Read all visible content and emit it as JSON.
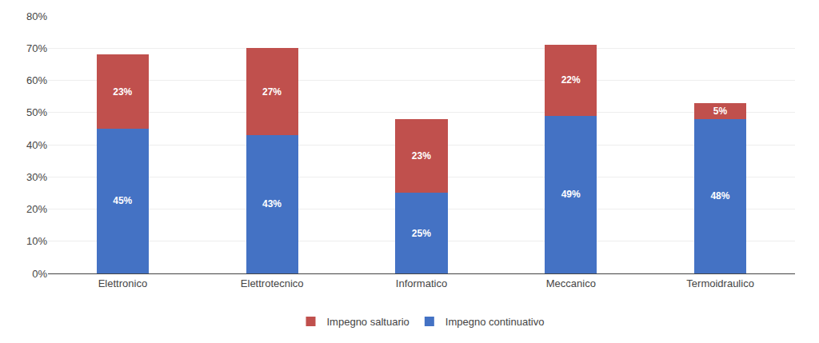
{
  "chart_data": {
    "type": "bar",
    "stacked": true,
    "categories": [
      "Elettronico",
      "Elettrotecnico",
      "Informatico",
      "Meccanico",
      "Termoidraulico"
    ],
    "series": [
      {
        "name": "Impegno continuativo",
        "color": "#4472C4",
        "values": [
          45,
          43,
          25,
          49,
          48
        ],
        "value_labels": [
          "45%",
          "43%",
          "25%",
          "49%",
          "48%"
        ]
      },
      {
        "name": "Impegno saltuario",
        "color": "#C0504D",
        "values": [
          23,
          27,
          23,
          22,
          5
        ],
        "value_labels": [
          "23%",
          "27%",
          "23%",
          "22%",
          "5%"
        ]
      }
    ],
    "ylim": [
      0,
      80
    ],
    "yticks": [
      {
        "value": 0,
        "label": "0%"
      },
      {
        "value": 10,
        "label": "10%"
      },
      {
        "value": 20,
        "label": "20%"
      },
      {
        "value": 30,
        "label": "30%"
      },
      {
        "value": 40,
        "label": "40%"
      },
      {
        "value": 50,
        "label": "50%"
      },
      {
        "value": 60,
        "label": "60%"
      },
      {
        "value": 70,
        "label": "70%"
      },
      {
        "value": 80,
        "label": "80%"
      }
    ],
    "grid": true,
    "legend": "bottom",
    "data_labels": true
  }
}
